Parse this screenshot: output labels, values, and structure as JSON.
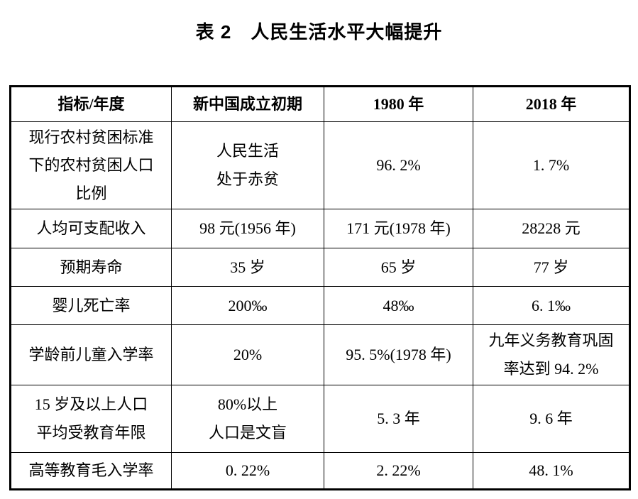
{
  "page": {
    "title": "表 2　人民生活水平大幅提升"
  },
  "table": {
    "headers": [
      "指标/年度",
      "新中国成立初期",
      "1980 年",
      "2018 年"
    ],
    "rows": [
      [
        [
          "现行农村贫困标准",
          "下的农村贫困人口",
          "比例"
        ],
        [
          "人民生活",
          "处于赤贫"
        ],
        "96. 2%",
        "1. 7%"
      ],
      [
        "人均可支配收入",
        "98 元(1956 年)",
        "171 元(1978 年)",
        "28228 元"
      ],
      [
        "预期寿命",
        "35 岁",
        "65 岁",
        "77 岁"
      ],
      [
        "婴儿死亡率",
        "200‰",
        "48‰",
        "6. 1‰"
      ],
      [
        "学龄前儿童入学率",
        "20%",
        "95. 5%(1978 年)",
        [
          "九年义务教育巩固",
          "率达到 94. 2%"
        ]
      ],
      [
        [
          "15 岁及以上人口",
          "平均受教育年限"
        ],
        [
          "80%以上",
          "人口是文盲"
        ],
        "5. 3 年",
        "9. 6 年"
      ],
      [
        "高等教育毛入学率",
        "0. 22%",
        "2. 22%",
        "48. 1%"
      ]
    ]
  },
  "colors": {
    "text": "#000000",
    "border": "#000000",
    "background": "#ffffff"
  }
}
